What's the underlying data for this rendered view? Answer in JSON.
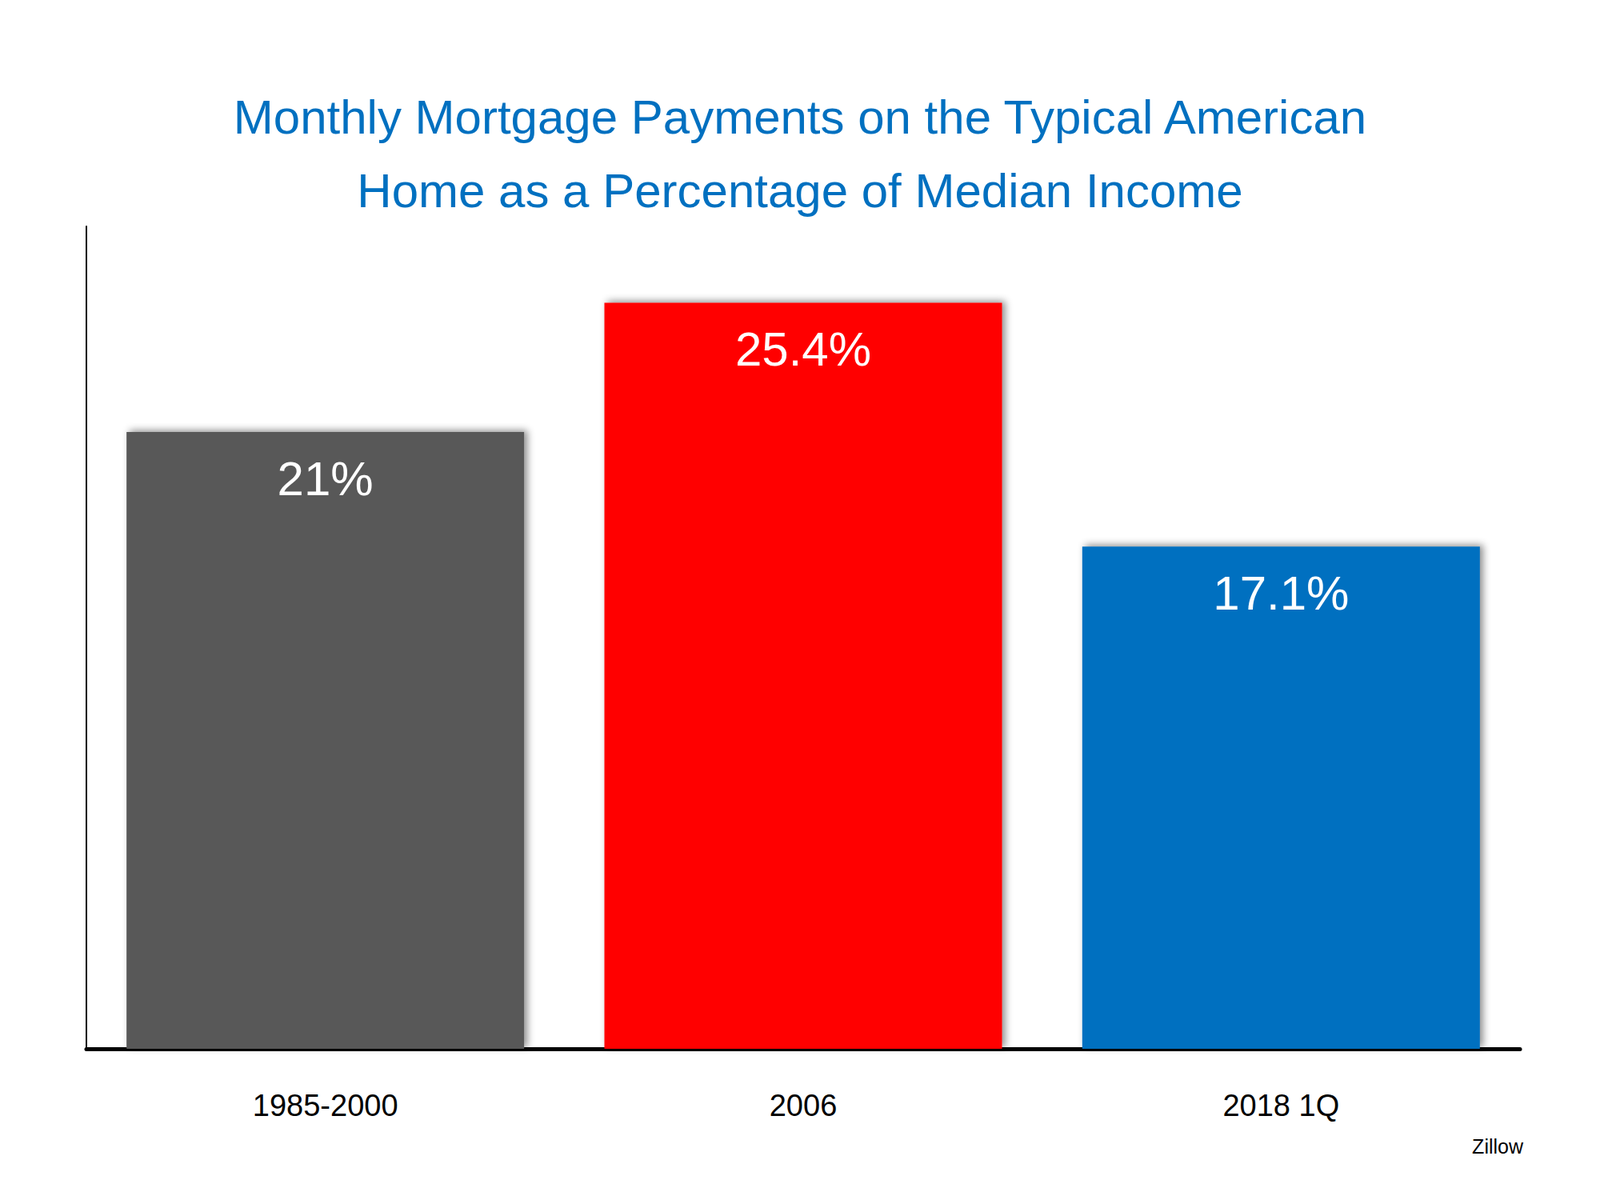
{
  "chart_data": {
    "type": "bar",
    "title": "Monthly Mortgage Payments on the Typical American\nHome as a Percentage of Median Income",
    "categories": [
      "1985-2000",
      "2006",
      "2018 1Q"
    ],
    "values": [
      21,
      25.4,
      17.1
    ],
    "value_labels": [
      "21%",
      "25.4%",
      "17.1%"
    ],
    "colors": [
      "#595959",
      "#ff0000",
      "#0070c0"
    ],
    "ylim": [
      0,
      28
    ],
    "grid": false,
    "data_labels": true,
    "tick_labels": "x",
    "annotation": "Zillow"
  }
}
